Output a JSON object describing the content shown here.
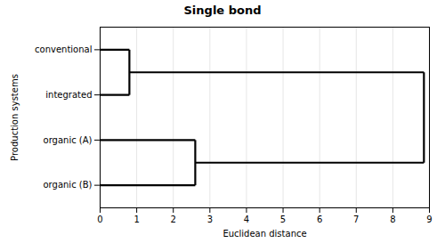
{
  "chart_data": {
    "type": "dendrogram",
    "title": "Single bond",
    "xlabel": "Euclidean distance",
    "ylabel": "Production systems",
    "categories": [
      "conventional",
      "integrated",
      "organic (A)",
      "organic (B)"
    ],
    "merges": [
      {
        "members": [
          "conventional",
          "integrated"
        ],
        "distance": 0.8
      },
      {
        "members": [
          "organic (A)",
          "organic (B)"
        ],
        "distance": 2.6
      },
      {
        "members": [
          "conventional",
          "integrated",
          "organic (A)",
          "organic (B)"
        ],
        "distance": 8.85
      }
    ],
    "xlim": [
      0,
      9
    ],
    "xticks": [
      0,
      1,
      2,
      3,
      4,
      5,
      6,
      7,
      8,
      9
    ],
    "grid": "x",
    "color": "#000000"
  }
}
